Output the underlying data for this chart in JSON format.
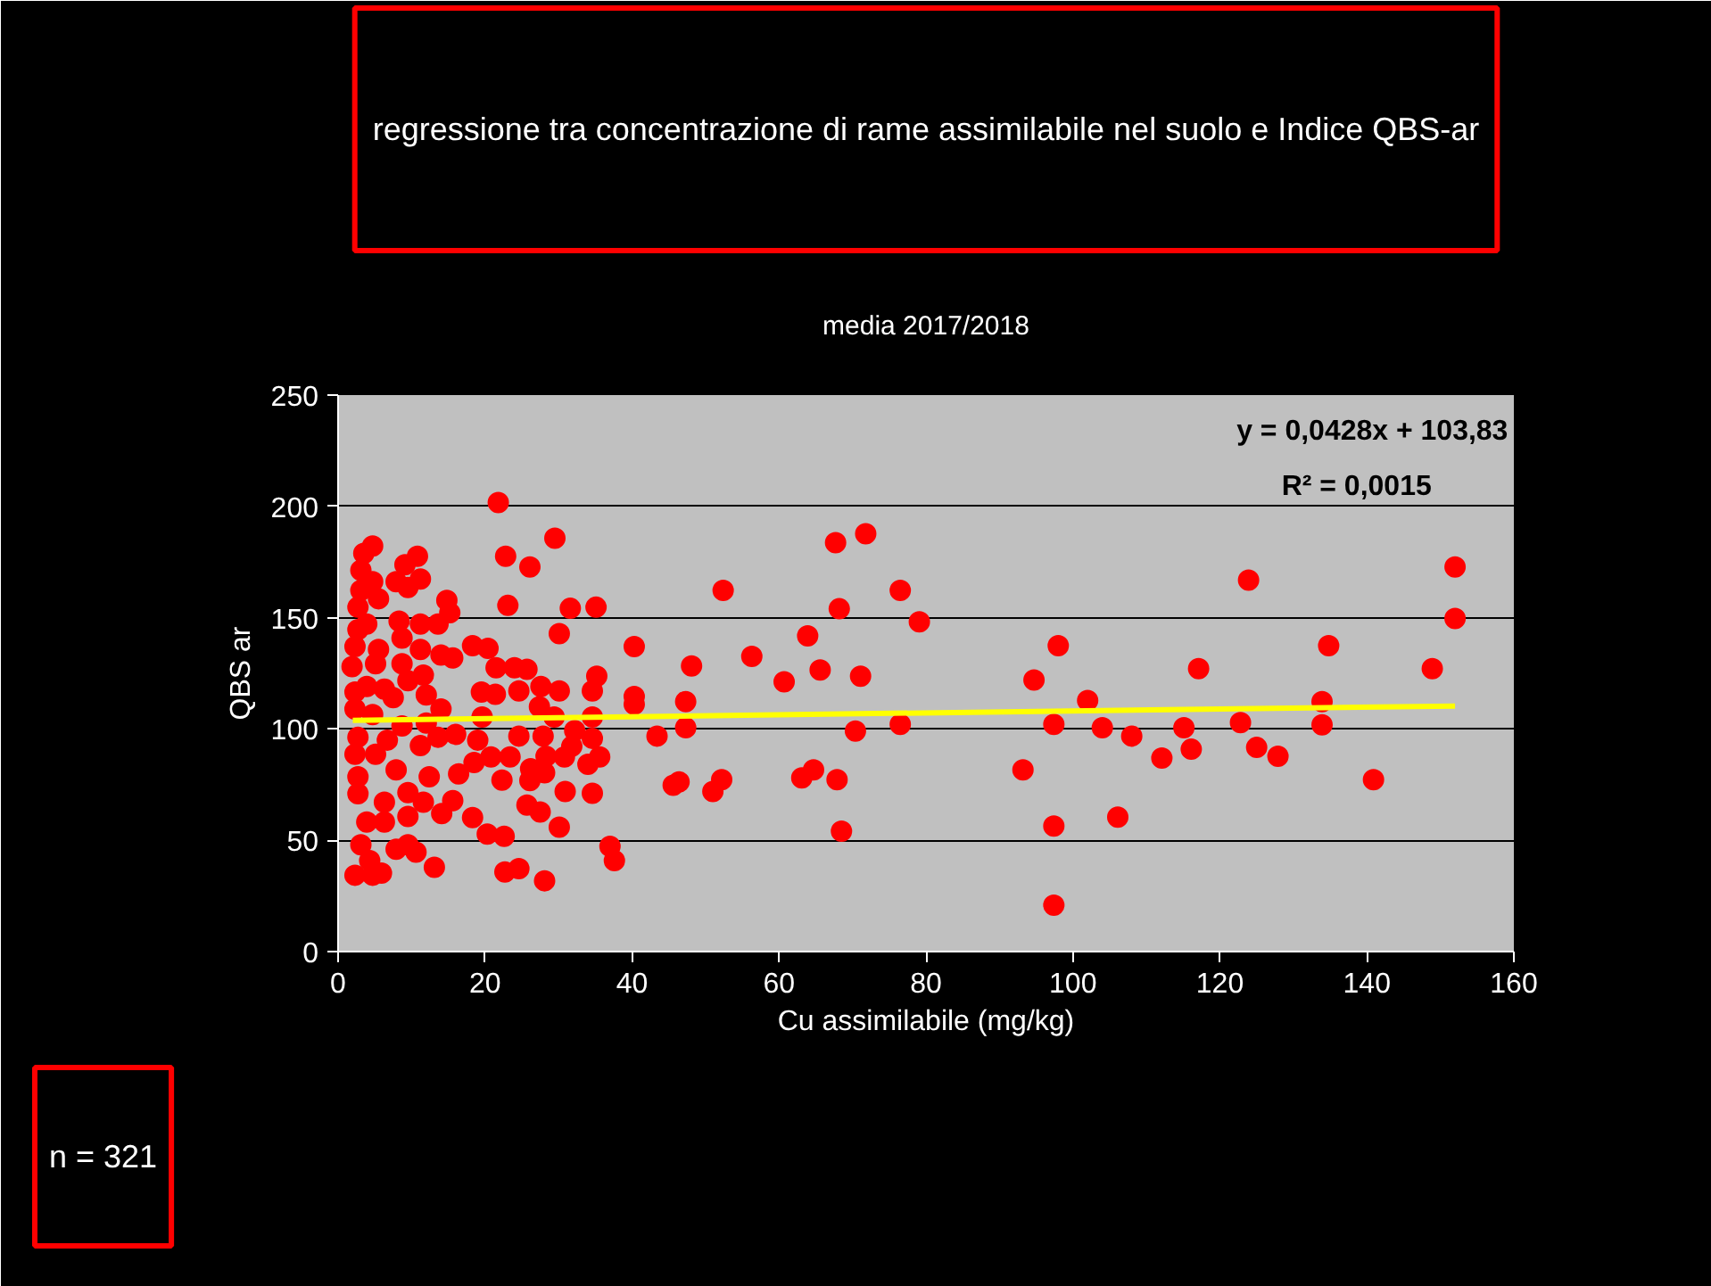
{
  "chart_data": {
    "type": "scatter",
    "title": "regressione tra concentrazione di rame assimilabile nel suolo e Indice QBS-ar",
    "subtitle": "media 2017/2018",
    "xlabel": "Cu assimilabile (mg/kg)",
    "ylabel": "QBS ar",
    "xlim": [
      0,
      160
    ],
    "xticks": [
      0,
      20,
      40,
      60,
      80,
      100,
      120,
      140,
      160
    ],
    "ylim": [
      0,
      250
    ],
    "yticks": [
      0,
      50,
      100,
      150,
      200,
      250
    ],
    "grid": "y",
    "annotations": [
      "y = 0,0428x + 103,83",
      "R² = 0,0015",
      "n = 321"
    ],
    "series": [
      {
        "marker": "circle",
        "color": "#ff0000",
        "x": [
          52.4,
          56.3,
          60.7,
          63.9,
          65.6,
          67.7,
          68.2,
          71.1,
          71.8,
          76.5,
          79.1,
          70.4,
          76.5,
          47.3,
          47.3,
          48.1,
          46.4,
          51.0,
          52.2,
          63.1,
          64.7,
          67.9,
          68.5,
          93.2,
          94.7,
          97.4,
          97.4,
          97.4,
          98.0,
          102.0,
          104.0,
          106.1,
          108.0,
          112.1,
          115.1,
          116.1,
          117.1,
          122.8,
          123.9,
          125.0,
          127.9,
          133.9,
          133.9,
          134.8,
          140.9,
          148.9,
          152.0,
          152.0,
          40.3,
          43.4,
          45.6,
          40.3,
          40.3,
          21.8,
          29.5,
          22.8,
          26.1,
          23.1,
          31.6,
          35.1,
          30.1,
          18.3,
          20.4,
          21.5,
          24.0,
          25.7,
          35.2,
          19.5,
          21.4,
          24.6,
          27.6,
          30.1,
          34.6,
          19.6,
          27.4,
          29.4,
          34.6,
          24.6,
          27.9,
          32.2,
          34.6,
          19.0,
          31.8,
          35.6,
          23.4,
          20.8,
          34.0,
          30.8,
          28.3,
          26.2,
          22.3,
          26.1,
          28.1,
          30.9,
          34.6,
          25.7,
          27.5,
          30.1,
          18.3,
          20.3,
          22.6,
          37.0,
          37.6,
          22.7,
          24.6,
          28.1,
          13.1,
          10.6,
          7.9,
          3.1,
          2.3,
          4.7,
          5.9,
          4.3,
          3.9,
          6.3,
          9.5,
          9.5,
          14.1,
          15.6,
          2.7,
          6.3,
          9.5,
          11.6,
          12.4,
          16.4,
          18.5,
          7.9,
          2.7,
          2.3,
          5.1,
          11.2,
          13.6,
          16.0,
          2.7,
          6.7,
          8.7,
          12.0,
          14.0,
          2.3,
          4.7,
          7.5,
          12.0,
          2.3,
          3.9,
          6.3,
          9.5,
          11.6,
          1.9,
          5.1,
          8.7,
          14.0,
          15.6,
          2.3,
          5.5,
          8.7,
          11.2,
          2.7,
          3.9,
          8.3,
          11.2,
          13.6,
          15.2,
          14.8,
          2.7,
          5.5,
          3.1,
          4.7,
          7.9,
          9.5,
          11.2,
          9.1,
          10.8,
          3.1,
          3.5,
          4.7
        ],
        "values": [
          162.3,
          132.6,
          121.2,
          141.8,
          126.5,
          183.7,
          154.0,
          123.7,
          187.7,
          162.3,
          148.1,
          99.1,
          102.1,
          112.3,
          100.6,
          128.3,
          76.2,
          71.9,
          77.2,
          78.0,
          81.6,
          77.2,
          54.1,
          81.6,
          122.0,
          102.1,
          56.4,
          20.8,
          137.4,
          112.8,
          100.6,
          60.4,
          96.8,
          86.9,
          100.6,
          90.9,
          127.1,
          102.9,
          166.9,
          91.7,
          87.7,
          112.3,
          101.9,
          137.4,
          77.2,
          127.1,
          172.8,
          149.6,
          137.0,
          96.8,
          74.7,
          114.6,
          111.1,
          201.7,
          185.7,
          177.6,
          172.8,
          155.5,
          154.2,
          154.7,
          142.8,
          137.4,
          136.2,
          127.5,
          127.5,
          126.8,
          123.7,
          116.6,
          115.6,
          117.1,
          119.1,
          117.1,
          117.1,
          105.4,
          110.0,
          105.4,
          105.4,
          96.8,
          96.8,
          99.3,
          95.8,
          95.0,
          92.2,
          87.4,
          87.4,
          87.4,
          84.1,
          87.4,
          87.7,
          82.1,
          77.0,
          76.8,
          80.3,
          71.9,
          71.1,
          65.8,
          62.7,
          55.9,
          60.2,
          52.8,
          51.8,
          47.3,
          40.9,
          35.8,
          37.3,
          31.8,
          37.9,
          44.7,
          46.0,
          48.0,
          34.3,
          34.3,
          35.3,
          40.9,
          58.2,
          58.2,
          60.7,
          48.0,
          62.0,
          67.8,
          70.9,
          67.1,
          71.4,
          67.1,
          78.5,
          79.8,
          84.9,
          81.6,
          78.5,
          88.6,
          88.6,
          92.5,
          96.3,
          97.6,
          96.3,
          95.0,
          101.4,
          102.7,
          109.0,
          109.0,
          106.5,
          114.1,
          115.3,
          116.6,
          119.1,
          117.9,
          121.7,
          124.2,
          128.0,
          129.3,
          129.3,
          133.2,
          131.9,
          137.0,
          135.7,
          140.8,
          135.7,
          144.6,
          147.1,
          148.4,
          147.1,
          147.1,
          152.2,
          157.8,
          154.7,
          158.5,
          162.3,
          166.2,
          166.2,
          163.6,
          167.4,
          173.8,
          177.6,
          171.3,
          178.9,
          182.2
        ]
      },
      {
        "type": "line",
        "marker": "none",
        "color": "#ffff00",
        "x": [
          2,
          152
        ],
        "values": [
          103.9,
          110.3
        ]
      }
    ]
  }
}
